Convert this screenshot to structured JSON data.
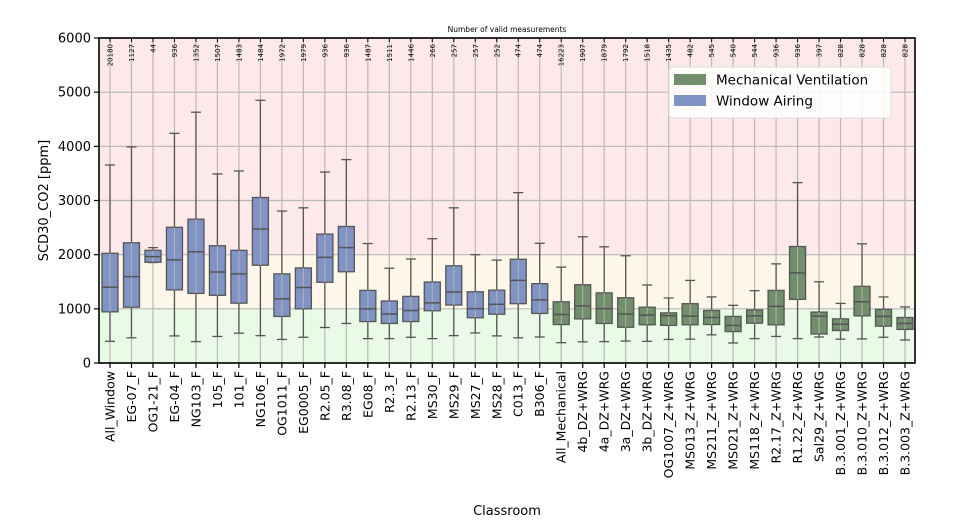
{
  "chart_data": {
    "type": "boxplot",
    "title": "",
    "top_axis_title": "Number of valid measurements",
    "xlabel": "Classroom",
    "ylabel": "SCD30_CO2 [ppm]",
    "ylim": [
      0,
      6000
    ],
    "yticks": [
      0,
      1000,
      2000,
      3000,
      4000,
      5000,
      6000
    ],
    "grid": true,
    "background_bands": [
      {
        "from": 0,
        "to": 1000,
        "color": "#e9fbe6"
      },
      {
        "from": 1000,
        "to": 2000,
        "color": "#fdf7ea"
      },
      {
        "from": 2000,
        "to": 6000,
        "color": "#fde9e9"
      }
    ],
    "legend": {
      "placement": "top-right",
      "entries": [
        {
          "label": "Mechanical Ventilation",
          "color": "#728f6c"
        },
        {
          "label": "Window Airing",
          "color": "#7f93c4"
        }
      ]
    },
    "groups": {
      "window": {
        "name": "Window Airing",
        "color": "#7f93c4"
      },
      "mechanical": {
        "name": "Mechanical Ventilation",
        "color": "#728f6c"
      }
    },
    "categories": [
      {
        "label": "All_Window",
        "group": "window",
        "count": "20180",
        "whisker_low": 400,
        "q1": 945,
        "median": 1400,
        "q3": 2025,
        "whisker_high": 3655
      },
      {
        "label": "EG-07_F",
        "group": "window",
        "count": "1127",
        "whisker_low": 465,
        "q1": 1030,
        "median": 1595,
        "q3": 2220,
        "whisker_high": 3990
      },
      {
        "label": "OG1-21_F",
        "group": "window",
        "count": "44",
        "whisker_low": 1855,
        "q1": 1860,
        "median": 1965,
        "q3": 2080,
        "whisker_high": 2130
      },
      {
        "label": "EG-04_F",
        "group": "window",
        "count": "936",
        "whisker_low": 500,
        "q1": 1350,
        "median": 1905,
        "q3": 2505,
        "whisker_high": 4240
      },
      {
        "label": "NG103_F",
        "group": "window",
        "count": "1352",
        "whisker_low": 395,
        "q1": 1285,
        "median": 2055,
        "q3": 2655,
        "whisker_high": 4630
      },
      {
        "label": "105_F",
        "group": "window",
        "count": "1507",
        "whisker_low": 490,
        "q1": 1250,
        "median": 1680,
        "q3": 2165,
        "whisker_high": 3490
      },
      {
        "label": "101_F",
        "group": "window",
        "count": "1483",
        "whisker_low": 550,
        "q1": 1105,
        "median": 1645,
        "q3": 2080,
        "whisker_high": 3545
      },
      {
        "label": "NG106_F",
        "group": "window",
        "count": "1484",
        "whisker_low": 505,
        "q1": 1805,
        "median": 2475,
        "q3": 3055,
        "whisker_high": 4850
      },
      {
        "label": "OG1011_F",
        "group": "window",
        "count": "1972",
        "whisker_low": 435,
        "q1": 860,
        "median": 1185,
        "q3": 1645,
        "whisker_high": 2805
      },
      {
        "label": "EG0005_F",
        "group": "window",
        "count": "1979",
        "whisker_low": 475,
        "q1": 1000,
        "median": 1395,
        "q3": 1755,
        "whisker_high": 2865
      },
      {
        "label": "R2.05_F",
        "group": "window",
        "count": "936",
        "whisker_low": 655,
        "q1": 1490,
        "median": 1950,
        "q3": 2380,
        "whisker_high": 3525
      },
      {
        "label": "R3.08_F",
        "group": "window",
        "count": "936",
        "whisker_low": 730,
        "q1": 1685,
        "median": 2130,
        "q3": 2520,
        "whisker_high": 3755
      },
      {
        "label": "EG08_F",
        "group": "window",
        "count": "1487",
        "whisker_low": 450,
        "q1": 765,
        "median": 1000,
        "q3": 1340,
        "whisker_high": 2205
      },
      {
        "label": "R2.3_F",
        "group": "window",
        "count": "1511",
        "whisker_low": 450,
        "q1": 730,
        "median": 905,
        "q3": 1145,
        "whisker_high": 1750
      },
      {
        "label": "R2.13_F",
        "group": "window",
        "count": "1446",
        "whisker_low": 475,
        "q1": 765,
        "median": 970,
        "q3": 1230,
        "whisker_high": 1920
      },
      {
        "label": "MS30_F",
        "group": "window",
        "count": "266",
        "whisker_low": 450,
        "q1": 965,
        "median": 1110,
        "q3": 1495,
        "whisker_high": 2295
      },
      {
        "label": "MS29_F",
        "group": "window",
        "count": "257",
        "whisker_low": 505,
        "q1": 1070,
        "median": 1310,
        "q3": 1795,
        "whisker_high": 2865
      },
      {
        "label": "MS27_F",
        "group": "window",
        "count": "257",
        "whisker_low": 555,
        "q1": 835,
        "median": 1005,
        "q3": 1315,
        "whisker_high": 2000
      },
      {
        "label": "MS28_F",
        "group": "window",
        "count": "252",
        "whisker_low": 500,
        "q1": 900,
        "median": 1085,
        "q3": 1345,
        "whisker_high": 1900
      },
      {
        "label": "C013_F",
        "group": "window",
        "count": "474",
        "whisker_low": 465,
        "q1": 1095,
        "median": 1525,
        "q3": 1915,
        "whisker_high": 3145
      },
      {
        "label": "B306_F",
        "group": "window",
        "count": "474",
        "whisker_low": 480,
        "q1": 915,
        "median": 1165,
        "q3": 1465,
        "whisker_high": 2210
      },
      {
        "label": "All_Mechanical",
        "group": "mechanical",
        "count": "16223",
        "whisker_low": 375,
        "q1": 710,
        "median": 895,
        "q3": 1130,
        "whisker_high": 1770
      },
      {
        "label": "4b_DZ+WRG",
        "group": "mechanical",
        "count": "1907",
        "whisker_low": 390,
        "q1": 815,
        "median": 1055,
        "q3": 1445,
        "whisker_high": 2330
      },
      {
        "label": "4a_DZ+WRG",
        "group": "mechanical",
        "count": "1879",
        "whisker_low": 395,
        "q1": 730,
        "median": 1005,
        "q3": 1295,
        "whisker_high": 2145
      },
      {
        "label": "3a_DZ+WRG",
        "group": "mechanical",
        "count": "1792",
        "whisker_low": 405,
        "q1": 660,
        "median": 905,
        "q3": 1205,
        "whisker_high": 1980
      },
      {
        "label": "3b_DZ+WRG",
        "group": "mechanical",
        "count": "1518",
        "whisker_low": 400,
        "q1": 705,
        "median": 885,
        "q3": 1030,
        "whisker_high": 1440
      },
      {
        "label": "OG1007_Z+WRG",
        "group": "mechanical",
        "count": "1435",
        "whisker_low": 435,
        "q1": 695,
        "median": 875,
        "q3": 925,
        "whisker_high": 1200
      },
      {
        "label": "MS013_Z+WRG",
        "group": "mechanical",
        "count": "482",
        "whisker_low": 440,
        "q1": 705,
        "median": 865,
        "q3": 1095,
        "whisker_high": 1525
      },
      {
        "label": "MS211_Z+WRG",
        "group": "mechanical",
        "count": "545",
        "whisker_low": 520,
        "q1": 710,
        "median": 840,
        "q3": 970,
        "whisker_high": 1220
      },
      {
        "label": "MS021_Z+WRG",
        "group": "mechanical",
        "count": "540",
        "whisker_low": 370,
        "q1": 580,
        "median": 695,
        "q3": 860,
        "whisker_high": 1065
      },
      {
        "label": "MS118_Z+WRG",
        "group": "mechanical",
        "count": "544",
        "whisker_low": 450,
        "q1": 735,
        "median": 870,
        "q3": 980,
        "whisker_high": 1335
      },
      {
        "label": "R2.17_Z+WRG",
        "group": "mechanical",
        "count": "936",
        "whisker_low": 490,
        "q1": 705,
        "median": 1045,
        "q3": 1340,
        "whisker_high": 1830
      },
      {
        "label": "R1.22_Z+WRG",
        "group": "mechanical",
        "count": "936",
        "whisker_low": 450,
        "q1": 1175,
        "median": 1665,
        "q3": 2150,
        "whisker_high": 3330
      },
      {
        "label": "Sal29_Z+WRG",
        "group": "mechanical",
        "count": "397",
        "whisker_low": 480,
        "q1": 535,
        "median": 865,
        "q3": 940,
        "whisker_high": 1500
      },
      {
        "label": "B.3.001_Z+WRG",
        "group": "mechanical",
        "count": "828",
        "whisker_low": 440,
        "q1": 600,
        "median": 715,
        "q3": 815,
        "whisker_high": 1100
      },
      {
        "label": "B.3.010_Z+WRG",
        "group": "mechanical",
        "count": "828",
        "whisker_low": 445,
        "q1": 870,
        "median": 1130,
        "q3": 1415,
        "whisker_high": 2200
      },
      {
        "label": "B.3.012_Z+WRG",
        "group": "mechanical",
        "count": "828",
        "whisker_low": 475,
        "q1": 680,
        "median": 860,
        "q3": 990,
        "whisker_high": 1220
      },
      {
        "label": "B.3.003_Z+WRG",
        "group": "mechanical",
        "count": "828",
        "whisker_low": 425,
        "q1": 620,
        "median": 730,
        "q3": 840,
        "whisker_high": 1035
      }
    ]
  }
}
